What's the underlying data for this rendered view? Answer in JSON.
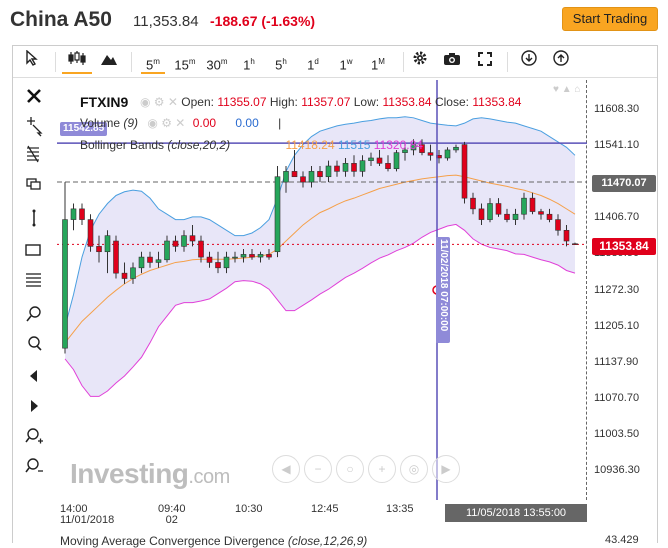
{
  "header": {
    "title": "China A50",
    "price": "11,353.84",
    "change": "-188.67 (-1.63%)",
    "start_trading": "Start Trading"
  },
  "toolbar": {
    "timeframes": [
      {
        "label": "5",
        "sup": "m",
        "active": true
      },
      {
        "label": "15",
        "sup": "m"
      },
      {
        "label": "30",
        "sup": "m"
      },
      {
        "label": "1",
        "sup": "h"
      },
      {
        "label": "5",
        "sup": "h"
      },
      {
        "label": "1",
        "sup": "d"
      },
      {
        "label": "1",
        "sup": "w"
      },
      {
        "label": "1",
        "sup": "M"
      }
    ]
  },
  "legend": {
    "symbol": "FTXIN9",
    "open_label": "Open:",
    "open": "11355.07",
    "high_label": "High:",
    "high": "11357.07",
    "low_label": "Low:",
    "low": "11353.84",
    "close_label": "Close:",
    "close": "11353.84",
    "volume_label": "Volume",
    "volume_param": "(9)",
    "volume_v1": "0.00",
    "volume_v2": "0.00",
    "volume_sep": "|",
    "bb_label": "Bollinger Bands",
    "bb_param": "(close,20,2)",
    "bb_mid": "11418.24",
    "bb_up": "11515",
    "bb_low": "11320.84",
    "bb_left_badge": "11542.85"
  },
  "yaxis": {
    "ticks": [
      "11608.30",
      "11541.10",
      "11406.70",
      "11339.50",
      "11272.30",
      "11205.10",
      "11137.90",
      "11070.70",
      "11003.50",
      "10936.30"
    ],
    "cross_value": "11470.07",
    "last_value": "11353.84"
  },
  "xaxis": {
    "ticks": [
      {
        "line1": "14:00",
        "line2": "11/01/2018"
      },
      {
        "line1": "09:40",
        "line2": "02"
      },
      {
        "line1": "10:30",
        "line2": ""
      },
      {
        "line1": "12:45",
        "line2": ""
      },
      {
        "line1": "13:35",
        "line2": ""
      }
    ],
    "cross_date": "11/05/2018 13:55:00",
    "cross_vertical": "11/02/2018 07:00:00"
  },
  "macd": {
    "label": "Moving Average Convergence Divergence",
    "param": "(close,12,26,9)",
    "value": "43.429"
  },
  "watermark": {
    "brand": "Investing",
    "suffix": ".com"
  },
  "colors": {
    "up": "#26a65b",
    "down": "#e0001b",
    "bb_upper": "#4a9fe0",
    "bb_lower": "#e040d8",
    "bb_mid": "#f5a04a",
    "band_fill": "#e8e6f8",
    "crosshair": "#5a50b8",
    "accent": "#f9a521"
  },
  "chart_data": {
    "type": "candlestick",
    "ylim": [
      10900,
      11650
    ],
    "candles": [
      {
        "o": 11160,
        "h": 11470,
        "l": 11150,
        "c": 11400
      },
      {
        "o": 11400,
        "h": 11430,
        "l": 11380,
        "c": 11420
      },
      {
        "o": 11420,
        "h": 11430,
        "l": 11390,
        "c": 11400
      },
      {
        "o": 11400,
        "h": 11410,
        "l": 11340,
        "c": 11350
      },
      {
        "o": 11350,
        "h": 11370,
        "l": 11320,
        "c": 11340
      },
      {
        "o": 11340,
        "h": 11380,
        "l": 11300,
        "c": 11370
      },
      {
        "o": 11360,
        "h": 11370,
        "l": 11290,
        "c": 11300
      },
      {
        "o": 11300,
        "h": 11320,
        "l": 11280,
        "c": 11290
      },
      {
        "o": 11290,
        "h": 11320,
        "l": 11280,
        "c": 11310
      },
      {
        "o": 11310,
        "h": 11340,
        "l": 11300,
        "c": 11330
      },
      {
        "o": 11330,
        "h": 11340,
        "l": 11310,
        "c": 11320
      },
      {
        "o": 11320,
        "h": 11340,
        "l": 11310,
        "c": 11325
      },
      {
        "o": 11325,
        "h": 11370,
        "l": 11320,
        "c": 11360
      },
      {
        "o": 11360,
        "h": 11370,
        "l": 11340,
        "c": 11350
      },
      {
        "o": 11350,
        "h": 11380,
        "l": 11340,
        "c": 11370
      },
      {
        "o": 11370,
        "h": 11390,
        "l": 11350,
        "c": 11360
      },
      {
        "o": 11360,
        "h": 11370,
        "l": 11320,
        "c": 11330
      },
      {
        "o": 11330,
        "h": 11340,
        "l": 11310,
        "c": 11320
      },
      {
        "o": 11320,
        "h": 11340,
        "l": 11300,
        "c": 11310
      },
      {
        "o": 11310,
        "h": 11340,
        "l": 11300,
        "c": 11330
      },
      {
        "o": 11330,
        "h": 11340,
        "l": 11320,
        "c": 11330
      },
      {
        "o": 11330,
        "h": 11345,
        "l": 11320,
        "c": 11335
      },
      {
        "o": 11335,
        "h": 11345,
        "l": 11325,
        "c": 11330
      },
      {
        "o": 11330,
        "h": 11340,
        "l": 11320,
        "c": 11335
      },
      {
        "o": 11335,
        "h": 11345,
        "l": 11325,
        "c": 11330
      },
      {
        "o": 11340,
        "h": 11500,
        "l": 11330,
        "c": 11480
      },
      {
        "o": 11470,
        "h": 11500,
        "l": 11450,
        "c": 11490
      },
      {
        "o": 11490,
        "h": 11530,
        "l": 11480,
        "c": 11480
      },
      {
        "o": 11480,
        "h": 11490,
        "l": 11460,
        "c": 11470
      },
      {
        "o": 11470,
        "h": 11500,
        "l": 11460,
        "c": 11490
      },
      {
        "o": 11490,
        "h": 11500,
        "l": 11470,
        "c": 11480
      },
      {
        "o": 11480,
        "h": 11510,
        "l": 11470,
        "c": 11500
      },
      {
        "o": 11500,
        "h": 11510,
        "l": 11480,
        "c": 11490
      },
      {
        "o": 11490,
        "h": 11515,
        "l": 11480,
        "c": 11505
      },
      {
        "o": 11505,
        "h": 11520,
        "l": 11480,
        "c": 11490
      },
      {
        "o": 11490,
        "h": 11520,
        "l": 11480,
        "c": 11510
      },
      {
        "o": 11510,
        "h": 11525,
        "l": 11500,
        "c": 11515
      },
      {
        "o": 11515,
        "h": 11530,
        "l": 11500,
        "c": 11505
      },
      {
        "o": 11505,
        "h": 11520,
        "l": 11490,
        "c": 11495
      },
      {
        "o": 11495,
        "h": 11530,
        "l": 11490,
        "c": 11525
      },
      {
        "o": 11525,
        "h": 11545,
        "l": 11510,
        "c": 11530
      },
      {
        "o": 11530,
        "h": 11550,
        "l": 11520,
        "c": 11540
      },
      {
        "o": 11540,
        "h": 11550,
        "l": 11520,
        "c": 11525
      },
      {
        "o": 11525,
        "h": 11540,
        "l": 11510,
        "c": 11520
      },
      {
        "o": 11520,
        "h": 11530,
        "l": 11505,
        "c": 11515
      },
      {
        "o": 11515,
        "h": 11535,
        "l": 11510,
        "c": 11530
      },
      {
        "o": 11530,
        "h": 11540,
        "l": 11525,
        "c": 11535
      },
      {
        "o": 11540,
        "h": 11545,
        "l": 11430,
        "c": 11440
      },
      {
        "o": 11440,
        "h": 11450,
        "l": 11410,
        "c": 11420
      },
      {
        "o": 11420,
        "h": 11430,
        "l": 11390,
        "c": 11400
      },
      {
        "o": 11400,
        "h": 11440,
        "l": 11395,
        "c": 11430
      },
      {
        "o": 11430,
        "h": 11440,
        "l": 11405,
        "c": 11410
      },
      {
        "o": 11410,
        "h": 11420,
        "l": 11395,
        "c": 11400
      },
      {
        "o": 11400,
        "h": 11420,
        "l": 11390,
        "c": 11410
      },
      {
        "o": 11410,
        "h": 11450,
        "l": 11400,
        "c": 11440
      },
      {
        "o": 11440,
        "h": 11450,
        "l": 11410,
        "c": 11415
      },
      {
        "o": 11415,
        "h": 11420,
        "l": 11400,
        "c": 11410
      },
      {
        "o": 11410,
        "h": 11420,
        "l": 11395,
        "c": 11400
      },
      {
        "o": 11400,
        "h": 11410,
        "l": 11370,
        "c": 11380
      },
      {
        "o": 11380,
        "h": 11390,
        "l": 11350,
        "c": 11360
      },
      {
        "o": 11355,
        "h": 11357,
        "l": 11353,
        "c": 11354
      }
    ],
    "bb_upper": [
      11200,
      11260,
      11330,
      11380,
      11410,
      11430,
      11445,
      11452,
      11455,
      11453,
      11440,
      11420,
      11410,
      11400,
      11400,
      11405,
      11405,
      11400,
      11390,
      11380,
      11370,
      11370,
      11375,
      11385,
      11400,
      11440,
      11490,
      11520,
      11540,
      11555,
      11565,
      11570,
      11575,
      11578,
      11580,
      11583,
      11585,
      11588,
      11590,
      11590,
      11592,
      11590,
      11585,
      11580,
      11578,
      11576,
      11575,
      11580,
      11588,
      11590,
      11588,
      11585,
      11582,
      11580,
      11575,
      11570,
      11565,
      11555,
      11545,
      11535,
      11520
    ],
    "bb_mid": [
      11170,
      11190,
      11210,
      11225,
      11240,
      11255,
      11268,
      11280,
      11290,
      11298,
      11305,
      11310,
      11315,
      11320,
      11322,
      11325,
      11326,
      11326,
      11326,
      11326,
      11327,
      11328,
      11330,
      11332,
      11335,
      11345,
      11360,
      11375,
      11390,
      11402,
      11413,
      11420,
      11428,
      11435,
      11440,
      11446,
      11452,
      11458,
      11462,
      11466,
      11470,
      11473,
      11476,
      11478,
      11480,
      11482,
      11483,
      11480,
      11476,
      11472,
      11468,
      11465,
      11462,
      11458,
      11455,
      11450,
      11445,
      11438,
      11430,
      11420,
      11410
    ],
    "bb_lower": [
      11140,
      11120,
      11090,
      11070,
      11070,
      11080,
      11095,
      11108,
      11125,
      11143,
      11170,
      11200,
      11220,
      11240,
      11245,
      11245,
      11248,
      11252,
      11262,
      11272,
      11284,
      11286,
      11285,
      11280,
      11270,
      11250,
      11230,
      11230,
      11240,
      11250,
      11261,
      11270,
      11281,
      11292,
      11300,
      11309,
      11319,
      11328,
      11334,
      11342,
      11348,
      11356,
      11367,
      11376,
      11382,
      11388,
      11391,
      11380,
      11364,
      11354,
      11348,
      11345,
      11342,
      11336,
      11335,
      11330,
      11325,
      11321,
      11315,
      11305,
      11300
    ]
  }
}
